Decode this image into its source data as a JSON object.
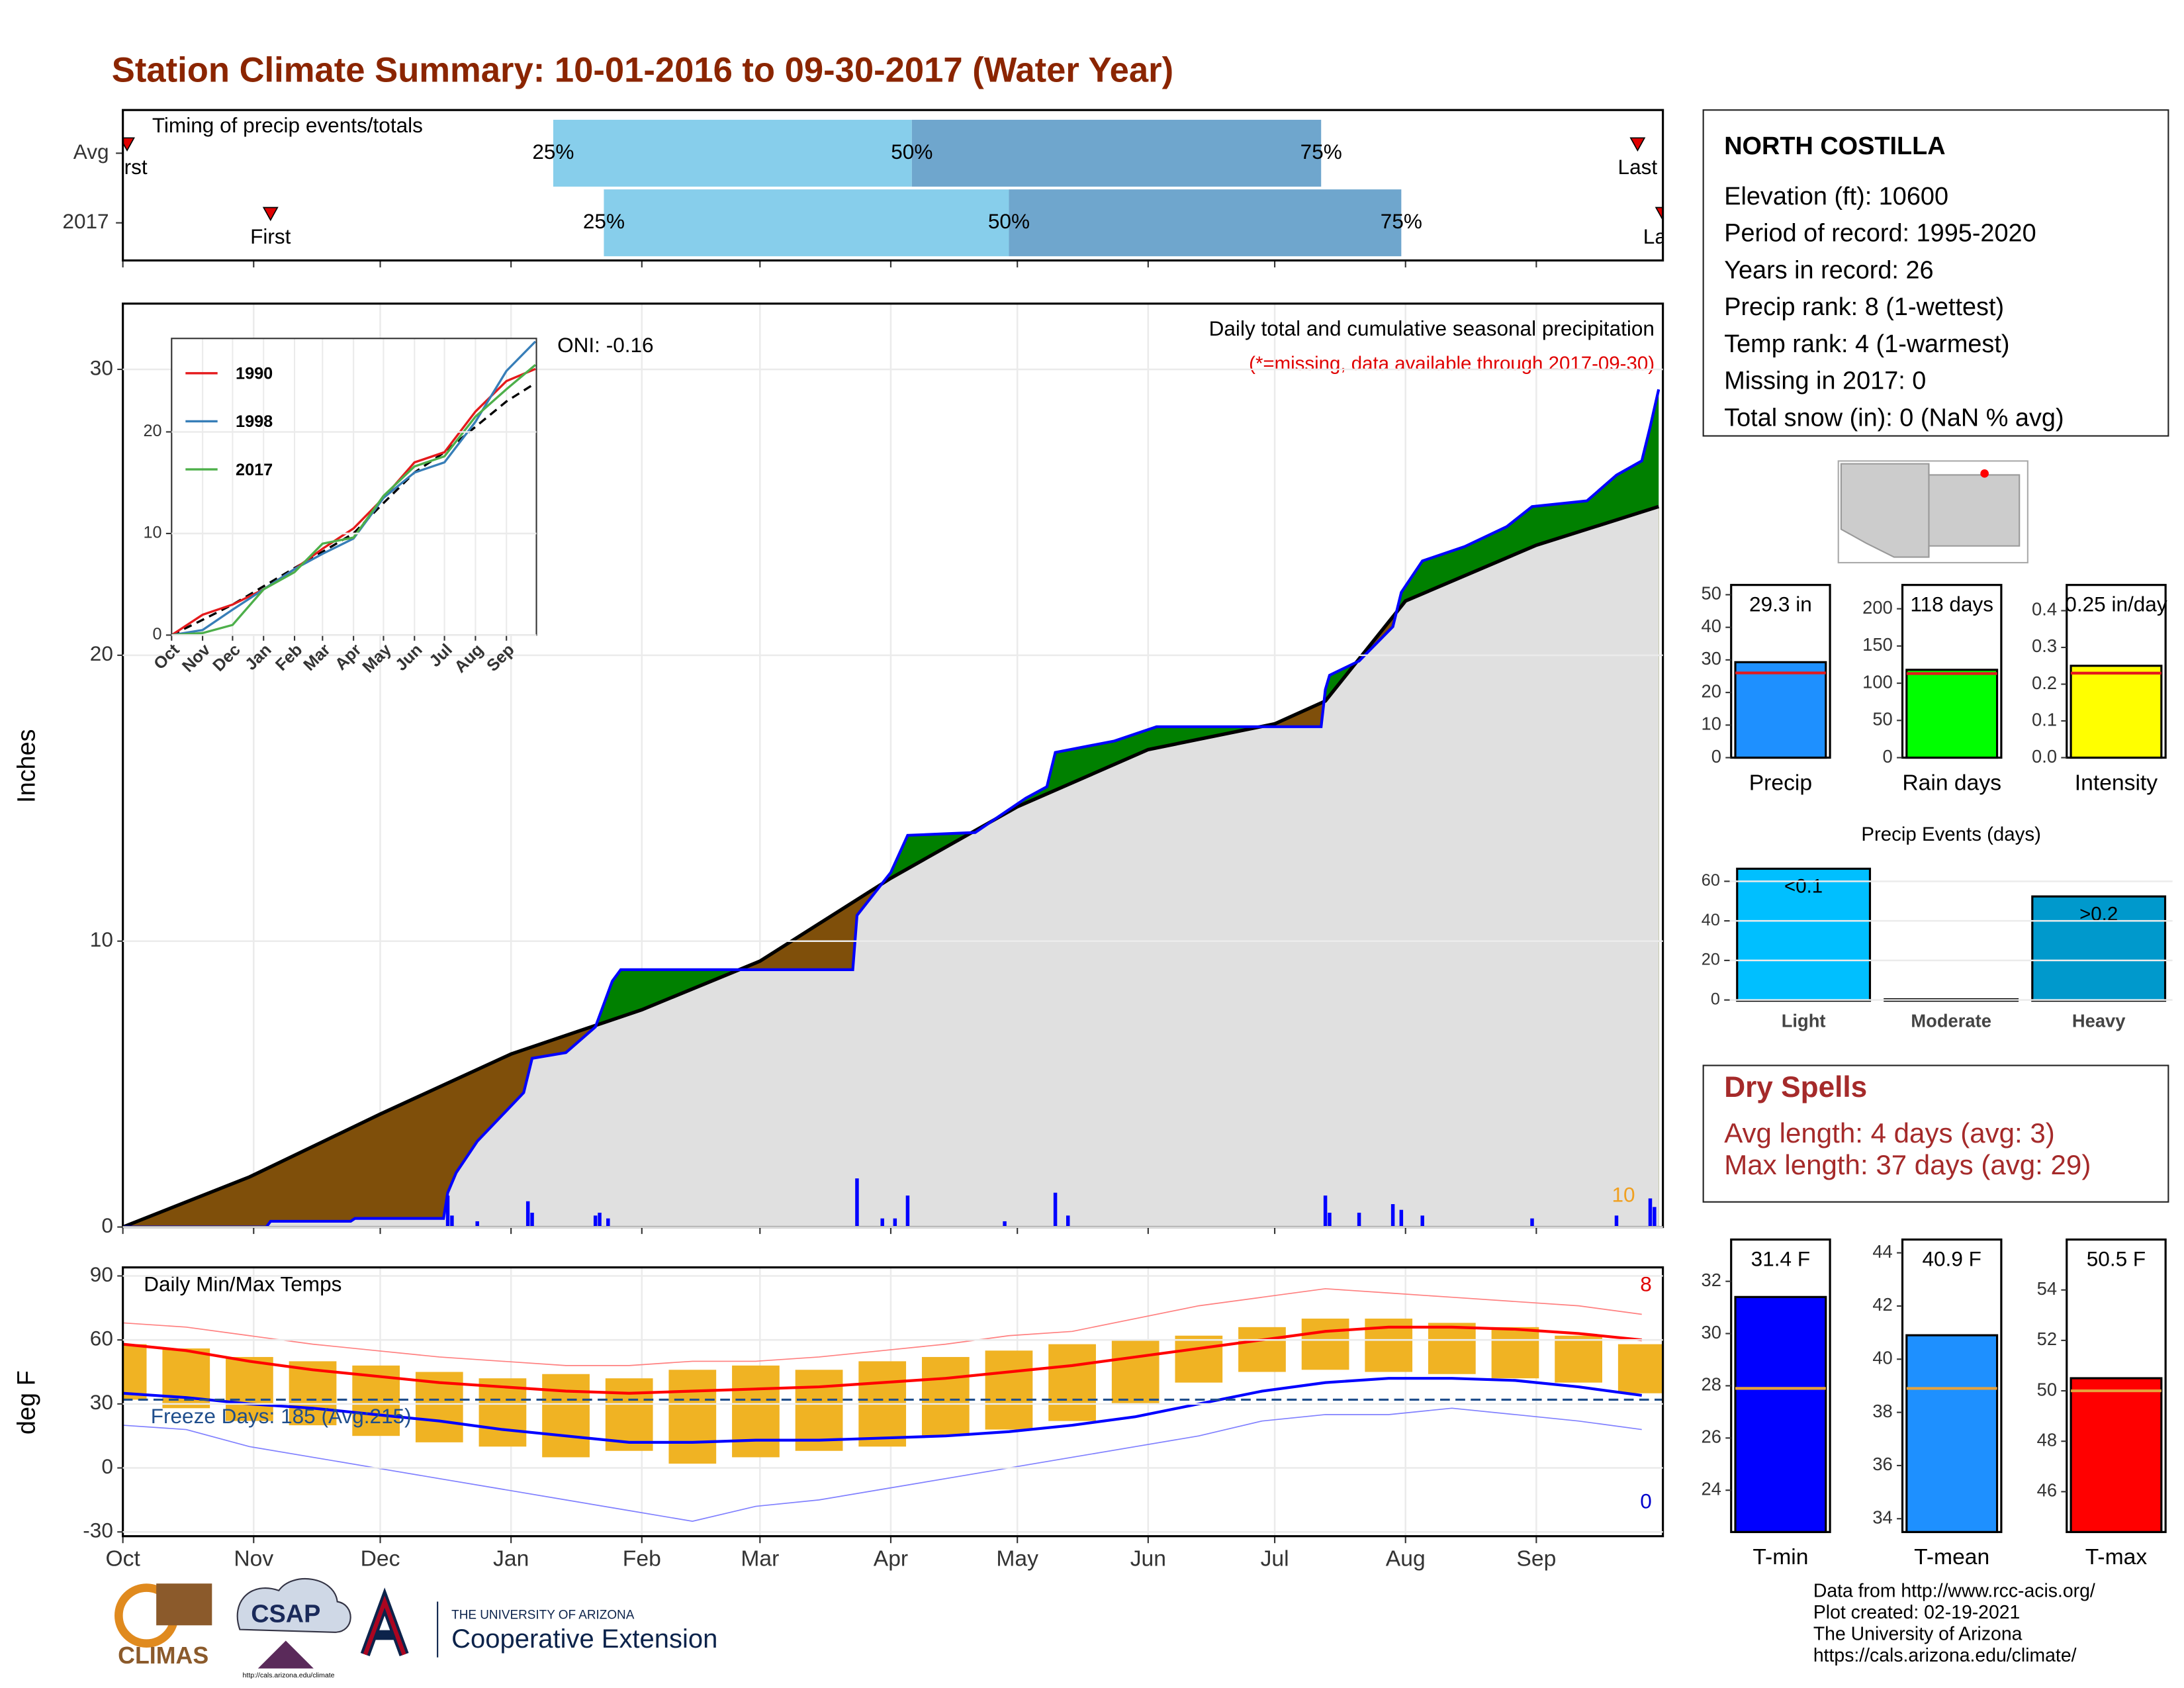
{
  "title": "Station Climate Summary: 10-01-2016 to 09-30-2017 (Water Year)",
  "station": {
    "name": "NORTH COSTILLA",
    "lines": [
      "Elevation (ft): 10600",
      "Period of record: 1995-2020",
      "Years in record: 26",
      "Precip rank: 8 (1-wettest)",
      "Temp rank: 4 (1-warmest)",
      "Missing in 2017: 0",
      "Total snow (in): 0 (NaN % avg)"
    ]
  },
  "dry_spells": {
    "title": "Dry Spells",
    "lines": [
      "Avg length: 4 days (avg: 3)",
      "Max length: 37 days (avg: 29)"
    ]
  },
  "logos": {
    "climas": "CLIMAS",
    "csap": "CSAP",
    "csap_url": "http://cals.arizona.edu/climate",
    "university": "THE UNIVERSITY OF ARIZONA",
    "extension": "Cooperative Extension"
  },
  "footer": [
    "Data from http://www.rcc-acis.org/",
    "Plot created: 02-19-2021",
    "The University of Arizona",
    "https://cals.arizona.edu/climate/"
  ],
  "chart_data": [
    {
      "type": "timeline",
      "title": "Timing of precip events/totals",
      "xlim": [
        0,
        365
      ],
      "xticks": [
        0,
        31,
        61,
        92,
        123,
        151,
        182,
        212,
        243,
        273,
        304,
        335
      ],
      "first_label": "First",
      "last_label": "Last",
      "quartile_labels": [
        "25%",
        "50%",
        "75%"
      ],
      "colors": [
        "#87ceeb",
        "#6fa6cd"
      ],
      "rows": [
        {
          "name": "Avg",
          "first": 1,
          "q25": 102,
          "q50": 187,
          "q75": 284,
          "last": 359
        },
        {
          "name": "2017",
          "first": 35,
          "q25": 114,
          "q50": 210,
          "q75": 303,
          "last": 365
        }
      ]
    },
    {
      "type": "cumulative",
      "ylabel": "Inches",
      "subtitle": "Daily total and cumulative seasonal precipitation",
      "note": "(*=missing, data available through 2017-09-30)",
      "oni": "ONI: -0.16",
      "annotation_count": 10,
      "xlim": [
        0,
        365
      ],
      "xticks": [
        0,
        31,
        61,
        92,
        123,
        151,
        182,
        212,
        243,
        273,
        304,
        335
      ],
      "ylim": [
        0,
        32.3
      ],
      "yticks": [
        0,
        10,
        20,
        30
      ],
      "grid": true,
      "above_color": "#008000",
      "below_color": "#7f4f0a",
      "cumulative": {
        "color": "#0000ff",
        "x": [
          0,
          34,
          35,
          54,
          55,
          76,
          77,
          79,
          84,
          95,
          97,
          105,
          112,
          116,
          118,
          173,
          174,
          182,
          186,
          202,
          209,
          214,
          219,
          221,
          235,
          245,
          284,
          285,
          286,
          293,
          301,
          303,
          308,
          318,
          328,
          334,
          347,
          354,
          360,
          362,
          364
        ],
        "values": [
          0,
          0,
          0.2,
          0.2,
          0.3,
          0.3,
          1.2,
          1.9,
          3.0,
          4.7,
          5.9,
          6.1,
          7.0,
          8.6,
          9.0,
          9.0,
          10.9,
          12.4,
          13.7,
          13.8,
          14.5,
          15.0,
          15.4,
          16.6,
          17.0,
          17.5,
          17.5,
          18.8,
          19.3,
          19.8,
          21.0,
          22.2,
          23.3,
          23.8,
          24.5,
          25.2,
          25.4,
          26.3,
          26.8,
          28.0,
          29.3
        ]
      },
      "average": {
        "color": "#000000",
        "x": [
          0,
          30,
          61,
          92,
          123,
          151,
          182,
          212,
          243,
          273,
          285,
          304,
          335,
          364
        ],
        "values": [
          0,
          1.75,
          3.95,
          6.05,
          7.6,
          9.3,
          12.2,
          14.7,
          16.7,
          17.6,
          18.4,
          21.9,
          23.85,
          25.2
        ]
      },
      "daily": {
        "color": "#0000ff",
        "x": [
          77,
          78,
          84,
          96,
          97,
          112,
          113,
          115,
          174,
          180,
          183,
          186,
          209,
          221,
          224,
          285,
          286,
          293,
          301,
          303,
          308,
          334,
          354,
          362,
          363
        ],
        "values": [
          1.1,
          0.4,
          0.2,
          0.9,
          0.5,
          0.4,
          0.5,
          0.3,
          1.7,
          0.3,
          0.3,
          1.1,
          0.2,
          1.2,
          0.4,
          1.1,
          0.5,
          0.5,
          0.8,
          0.6,
          0.4,
          0.3,
          0.4,
          1.0,
          0.7
        ]
      }
    },
    {
      "type": "inset",
      "x": [
        0,
        31,
        61,
        92,
        123,
        151,
        182,
        212,
        243,
        273,
        304,
        335,
        364
      ],
      "xlim": [
        0,
        365
      ],
      "ylim": [
        0,
        29.2
      ],
      "yticks": [
        0,
        10,
        20
      ],
      "xticks": [
        {
          "value": 0,
          "label": "Oct"
        },
        {
          "value": 31,
          "label": "Nov"
        },
        {
          "value": 61,
          "label": "Dec"
        },
        {
          "value": 92,
          "label": "Jan"
        },
        {
          "value": 123,
          "label": "Feb"
        },
        {
          "value": 151,
          "label": "Mar"
        },
        {
          "value": 182,
          "label": "Apr"
        },
        {
          "value": 212,
          "label": "May"
        },
        {
          "value": 243,
          "label": "Jun"
        },
        {
          "value": 273,
          "label": "Jul"
        },
        {
          "value": 304,
          "label": "Aug"
        },
        {
          "value": 335,
          "label": "Sep"
        }
      ],
      "series": [
        {
          "name": "1990",
          "color": "#e41a1c",
          "values": [
            0,
            2,
            3,
            4.5,
            6.5,
            8.5,
            10.5,
            13.5,
            17,
            18,
            22,
            25,
            26.2
          ]
        },
        {
          "name": "1998",
          "color": "#377eb8",
          "values": [
            0,
            0.5,
            2.5,
            4.5,
            6.5,
            8,
            9.5,
            13.5,
            16,
            17,
            21,
            26,
            28.9
          ]
        },
        {
          "name": "2017",
          "color": "#4daf4a",
          "values": [
            0,
            0.2,
            1.0,
            4.5,
            6.2,
            9.0,
            9.6,
            13.7,
            16.6,
            17.6,
            21.5,
            24.2,
            26.6
          ]
        }
      ],
      "average": [
        0,
        1.5,
        3,
        4.8,
        6.6,
        8.2,
        10,
        13,
        16,
        18,
        20.5,
        23,
        24.8
      ]
    },
    {
      "type": "temperature",
      "title": "Daily Min/Max Temps",
      "ylabel": "deg F",
      "freeze_label": "Freeze Days: 185 (Avg:215)",
      "freeze_line": 32,
      "record_high_count": 8,
      "record_low_count": 0,
      "xlim": [
        0,
        365
      ],
      "ylim": [
        -32,
        94
      ],
      "yticks": [
        -30,
        0,
        30,
        60,
        90
      ],
      "grid": true,
      "xticks": [
        {
          "value": 0,
          "label": "Oct"
        },
        {
          "value": 31,
          "label": "Nov"
        },
        {
          "value": 61,
          "label": "Dec"
        },
        {
          "value": 92,
          "label": "Jan"
        },
        {
          "value": 123,
          "label": "Feb"
        },
        {
          "value": 151,
          "label": "Mar"
        },
        {
          "value": 182,
          "label": "Apr"
        },
        {
          "value": 212,
          "label": "May"
        },
        {
          "value": 243,
          "label": "Jun"
        },
        {
          "value": 273,
          "label": "Jul"
        },
        {
          "value": 304,
          "label": "Aug"
        },
        {
          "value": 335,
          "label": "Sep"
        }
      ],
      "x": [
        0,
        15,
        30,
        45,
        60,
        75,
        90,
        105,
        120,
        135,
        150,
        165,
        180,
        195,
        210,
        225,
        240,
        255,
        270,
        285,
        300,
        315,
        330,
        345,
        360
      ],
      "range_color": "#f0b323",
      "range_low": [
        32,
        28,
        22,
        20,
        15,
        12,
        10,
        5,
        8,
        2,
        5,
        8,
        10,
        15,
        18,
        22,
        30,
        40,
        45,
        46,
        45,
        44,
        42,
        40,
        35
      ],
      "range_high": [
        58,
        56,
        52,
        50,
        48,
        45,
        42,
        44,
        42,
        46,
        48,
        46,
        50,
        52,
        55,
        58,
        60,
        62,
        66,
        70,
        70,
        68,
        66,
        62,
        58
      ],
      "series": [
        {
          "color": "#ff0000",
          "width": 2,
          "values": [
            58,
            55,
            50,
            46,
            43,
            40,
            38,
            36,
            35,
            36,
            37,
            38,
            40,
            42,
            45,
            48,
            52,
            56,
            60,
            64,
            66,
            66,
            65,
            63,
            60
          ]
        },
        {
          "color": "#0000ff",
          "width": 2,
          "values": [
            35,
            33,
            30,
            28,
            25,
            22,
            18,
            15,
            12,
            12,
            13,
            13,
            14,
            15,
            17,
            20,
            24,
            30,
            36,
            40,
            42,
            42,
            41,
            38,
            34
          ]
        },
        {
          "color": "#ff8080",
          "width": 0.8,
          "values": [
            68,
            66,
            62,
            58,
            55,
            52,
            50,
            48,
            48,
            50,
            50,
            52,
            55,
            58,
            62,
            64,
            70,
            76,
            80,
            84,
            82,
            80,
            78,
            76,
            72
          ]
        },
        {
          "color": "#8080ff",
          "width": 0.8,
          "values": [
            20,
            18,
            10,
            5,
            0,
            -5,
            -10,
            -15,
            -20,
            -25,
            -18,
            -15,
            -10,
            -5,
            0,
            5,
            10,
            15,
            22,
            25,
            25,
            28,
            25,
            22,
            18
          ]
        }
      ]
    },
    {
      "type": "bar",
      "categories": [
        "Precip"
      ],
      "values": [
        29.3
      ],
      "value_labels": [
        "29.3 in"
      ],
      "average": 26,
      "average_color": "#e41a1c",
      "color": "#1e90ff",
      "ylim": [
        0,
        53
      ],
      "yticks": [
        0,
        10,
        20,
        30,
        40,
        50
      ]
    },
    {
      "type": "bar",
      "categories": [
        "Rain days"
      ],
      "values": [
        118
      ],
      "value_labels": [
        "118 days"
      ],
      "average": 113,
      "average_color": "#e41a1c",
      "color": "#00ff00",
      "ylim": [
        0,
        232
      ],
      "yticks": [
        0,
        50,
        100,
        150,
        200
      ]
    },
    {
      "type": "bar",
      "categories": [
        "Intensity"
      ],
      "values": [
        0.25
      ],
      "value_labels": [
        "0.25 in/day"
      ],
      "average": 0.23,
      "average_color": "#e41a1c",
      "color": "#ffff00",
      "ylim": [
        0,
        0.47
      ],
      "yticks": [
        {
          "value": 0,
          "label": "0.0"
        },
        0.1,
        0.2,
        0.3,
        0.4
      ]
    },
    {
      "type": "events",
      "title": "Precip Events (days)",
      "categories": [
        "Light",
        "Moderate",
        "Heavy"
      ],
      "values": [
        66,
        0,
        52
      ],
      "thresholds": [
        "<0.1",
        null,
        ">0.2"
      ],
      "colors": [
        "#00bfff",
        "#00bfff",
        "#0099cc"
      ],
      "ylim": [
        0,
        69
      ],
      "yticks": [
        0,
        20,
        40,
        60
      ]
    },
    {
      "type": "bar",
      "categories": [
        "T-min"
      ],
      "values": [
        31.4
      ],
      "value_labels": [
        "31.4 F"
      ],
      "average": 27.9,
      "average_color": "#e6a23c",
      "color": "#0000ff",
      "ylim": [
        22.4,
        33.6
      ],
      "yticks": [
        24,
        26,
        28,
        30,
        32
      ]
    },
    {
      "type": "bar",
      "categories": [
        "T-mean"
      ],
      "values": [
        40.9
      ],
      "value_labels": [
        "40.9 F"
      ],
      "average": 38.9,
      "average_color": "#e6a23c",
      "color": "#1e90ff",
      "ylim": [
        33.5,
        44.5
      ],
      "yticks": [
        34,
        36,
        38,
        40,
        42,
        44
      ]
    },
    {
      "type": "bar",
      "categories": [
        "T-max"
      ],
      "values": [
        50.5
      ],
      "value_labels": [
        "50.5 F"
      ],
      "average": 50.0,
      "average_color": "#e6a23c",
      "color": "#ff0000",
      "ylim": [
        44.4,
        56
      ],
      "yticks": [
        46,
        48,
        50,
        52,
        54
      ]
    }
  ]
}
